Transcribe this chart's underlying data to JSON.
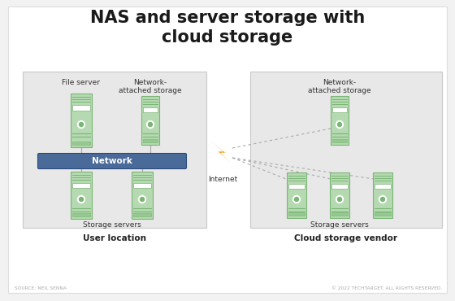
{
  "title": "NAS and server storage with\ncloud storage",
  "bg_color": "#f2f2f2",
  "white_bg": "#ffffff",
  "panel_color": "#e8e8e8",
  "panel_edge": "#cccccc",
  "server_fill": "#b5d9b0",
  "server_edge": "#7ab575",
  "server_stripe_fill": "#94c98f",
  "network_bar_color": "#4a6a9a",
  "network_bar_edge": "#2a4a7a",
  "network_text": "Network",
  "lightning_color1": "#f5a020",
  "lightning_color2": "#f5a020",
  "dashed_line_color": "#aaaaaa",
  "connector_color": "#aaaaaa",
  "left_labels": {
    "top_left": "File server",
    "top_right": "Network-\nattached storage",
    "bottom": "Storage servers",
    "panel": "User location"
  },
  "right_labels": {
    "top": "Network-\nattached storage",
    "bottom": "Storage servers",
    "panel": "Cloud storage vendor"
  },
  "internet_label": "Internet",
  "footer_left": "SOURCE: NEIL SENNA",
  "footer_right": "© 2022 TECHTARGET. ALL RIGHTS RESERVED."
}
